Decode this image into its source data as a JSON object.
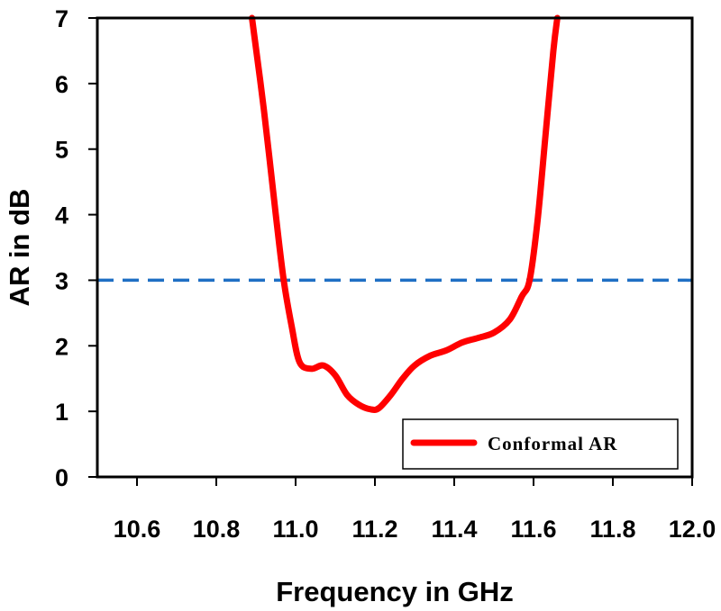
{
  "chart_data": {
    "type": "line",
    "title": "",
    "xlabel": "Frequency in GHz",
    "ylabel": "AR in dB",
    "xlim": [
      10.5,
      12.0
    ],
    "ylim": [
      0,
      7
    ],
    "x_ticks": [
      "10.6",
      "10.8",
      "11.0",
      "11.2",
      "11.4",
      "11.6",
      "11.8",
      "12.0"
    ],
    "y_ticks": [
      "0",
      "1",
      "2",
      "3",
      "4",
      "5",
      "6",
      "7"
    ],
    "grid": false,
    "legend_position": "bottom-right",
    "reference_lines": [
      {
        "axis": "y",
        "value": 3,
        "style": "dashed",
        "color": "#1f6fc4"
      }
    ],
    "series": [
      {
        "name": "Conformal AR",
        "color": "#ff0000",
        "x": [
          10.89,
          10.92,
          10.95,
          10.97,
          10.99,
          11.01,
          11.04,
          11.07,
          11.1,
          11.13,
          11.16,
          11.19,
          11.21,
          11.24,
          11.27,
          11.3,
          11.34,
          11.38,
          11.42,
          11.46,
          11.5,
          11.54,
          11.57,
          11.59,
          11.61,
          11.63,
          11.65,
          11.66
        ],
        "y": [
          7.0,
          5.6,
          4.0,
          3.0,
          2.3,
          1.75,
          1.65,
          1.7,
          1.55,
          1.25,
          1.1,
          1.03,
          1.05,
          1.25,
          1.5,
          1.7,
          1.85,
          1.93,
          2.05,
          2.12,
          2.2,
          2.4,
          2.75,
          3.0,
          3.9,
          5.2,
          6.5,
          7.0
        ]
      }
    ]
  }
}
